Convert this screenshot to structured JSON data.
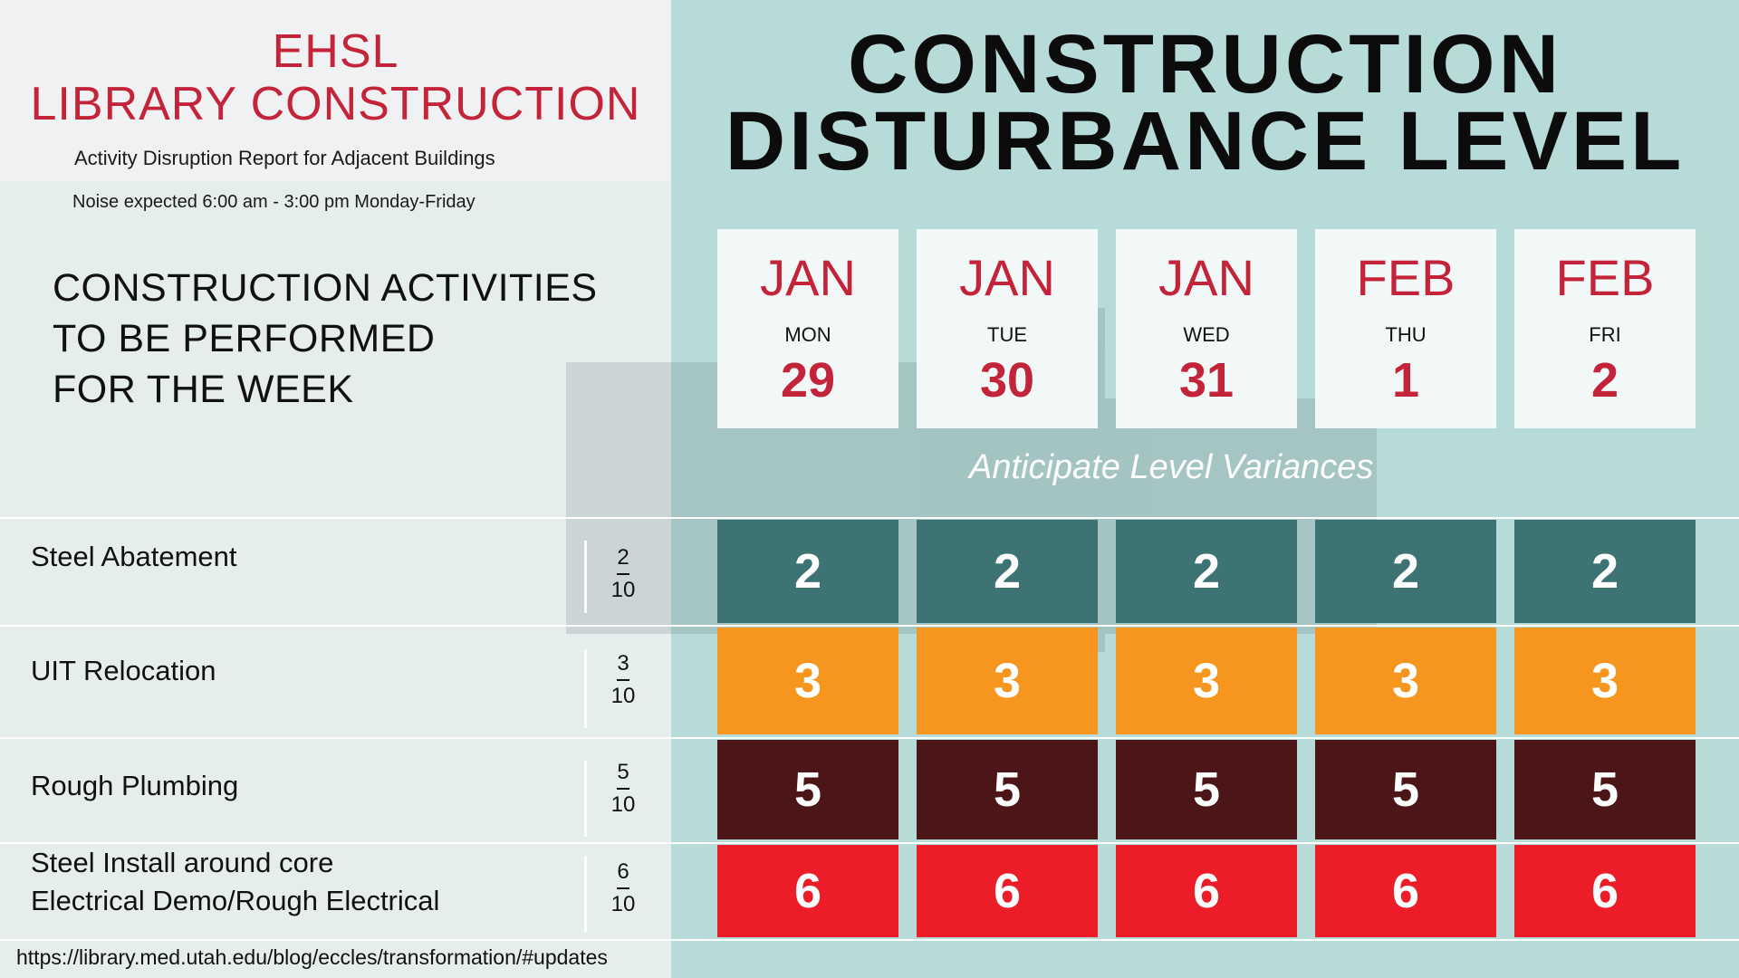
{
  "header": {
    "title_line1": "EHSL",
    "title_line2": "LIBRARY CONSTRUCTION",
    "subtitle": "Activity Disruption Report for Adjacent Buildings",
    "noise_note": "Noise expected 6:00 am - 3:00 pm Monday-Friday"
  },
  "activities_heading": [
    "CONSTRUCTION ACTIVITIES",
    "TO BE PERFORMED",
    "FOR THE WEEK"
  ],
  "main_title": [
    "CONSTRUCTION",
    "DISTURBANCE LEVEL"
  ],
  "days": [
    {
      "month": "JAN",
      "dow": "MON",
      "day": "29"
    },
    {
      "month": "JAN",
      "dow": "TUE",
      "day": "30"
    },
    {
      "month": "JAN",
      "dow": "WED",
      "day": "31"
    },
    {
      "month": "FEB",
      "dow": "THU",
      "day": "1"
    },
    {
      "month": "FEB",
      "dow": "FRI",
      "day": "2"
    }
  ],
  "variance_note": "Anticipate Level Variances",
  "activities": [
    {
      "label_lines": [
        "Steel Abatement"
      ],
      "level": "2",
      "out_of": "10",
      "color": "#3d7373",
      "values": [
        "2",
        "2",
        "2",
        "2",
        "2"
      ]
    },
    {
      "label_lines": [
        "UIT Relocation"
      ],
      "level": "3",
      "out_of": "10",
      "color": "#f6961f",
      "values": [
        "3",
        "3",
        "3",
        "3",
        "3"
      ]
    },
    {
      "label_lines": [
        "Rough Plumbing"
      ],
      "level": "5",
      "out_of": "10",
      "color": "#4c1518",
      "values": [
        "5",
        "5",
        "5",
        "5",
        "5"
      ]
    },
    {
      "label_lines": [
        "Steel Install around core",
        "Electrical Demo/Rough Electrical"
      ],
      "level": "6",
      "out_of": "10",
      "color": "#ec1c28",
      "values": [
        "6",
        "6",
        "6",
        "6",
        "6"
      ]
    }
  ],
  "footer_url": "https://library.med.utah.edu/blog/eccles/transformation/#updates",
  "colors": {
    "brand_red": "#c4243a",
    "teal_bg": "#b6dbd8"
  }
}
